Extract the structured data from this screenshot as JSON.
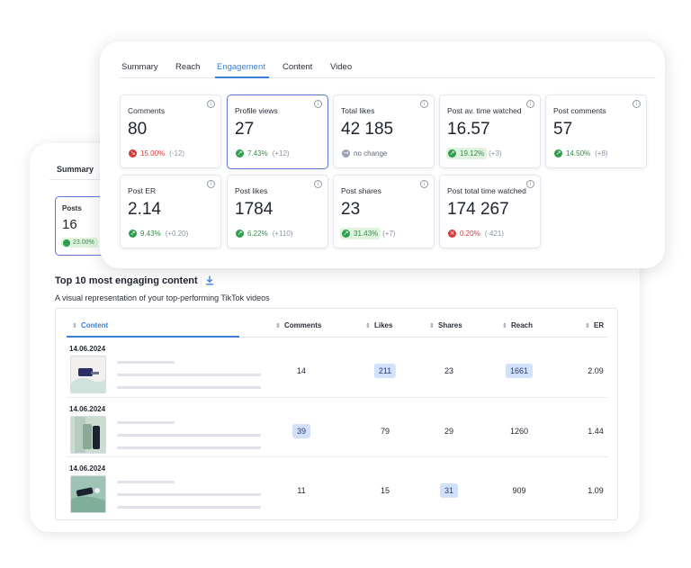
{
  "back": {
    "tab": "Summary",
    "posts_card": {
      "label": "Posts",
      "value": "16",
      "change": "23.00%"
    },
    "section_title": "Top 10 most engaging content",
    "section_subtitle": "A visual representation of your top-performing TikTok videos",
    "table": {
      "columns": [
        "Content",
        "Comments",
        "Likes",
        "Shares",
        "Reach",
        "ER"
      ],
      "rows": [
        {
          "date": "14.06.2024",
          "comments": "14",
          "likes": "211",
          "shares": "23",
          "reach": "1661",
          "er": "2.09"
        },
        {
          "date": "14.06.2024",
          "comments": "39",
          "likes": "79",
          "shares": "29",
          "reach": "1260",
          "er": "1.44"
        },
        {
          "date": "14.06.2024",
          "comments": "11",
          "likes": "15",
          "shares": "31",
          "reach": "909",
          "er": "1.09"
        }
      ]
    }
  },
  "front": {
    "tabs": [
      "Summary",
      "Reach",
      "Engagement",
      "Content",
      "Video"
    ],
    "active_tab": "Engagement",
    "metrics": [
      {
        "label": "Comments",
        "value": "80",
        "change": "15.00%",
        "delta": "(-12)",
        "trend": "negative"
      },
      {
        "label": "Profile views",
        "value": "27",
        "change": "7.43%",
        "delta": "(+12)",
        "trend": "positive"
      },
      {
        "label": "Total likes",
        "value": "42 185",
        "change": "no change",
        "delta": "",
        "trend": "neutral"
      },
      {
        "label": "Post av. time watched",
        "value": "16.57",
        "change": "19.12%",
        "delta": "(+3)",
        "trend": "positive"
      },
      {
        "label": "Post comments",
        "value": "57",
        "change": "14.50%",
        "delta": "(+8)",
        "trend": "positive"
      },
      {
        "label": "Post ER",
        "value": "2.14",
        "change": "9.43%",
        "delta": "(+0.20)",
        "trend": "positive"
      },
      {
        "label": "Post likes",
        "value": "1784",
        "change": "6.22%",
        "delta": "(+110)",
        "trend": "positive"
      },
      {
        "label": "Post shares",
        "value": "23",
        "change": "31.43%",
        "delta": "(+7)",
        "trend": "positive"
      },
      {
        "label": "Post total time watched",
        "value": "174 267",
        "change": "0.20%",
        "delta": "(-421)",
        "trend": "negative"
      }
    ]
  },
  "colors": {
    "accent": "#3b7fd9",
    "positive": "#2f9e4f",
    "negative": "#d23c3c",
    "highlight": "#d1e0fb"
  }
}
